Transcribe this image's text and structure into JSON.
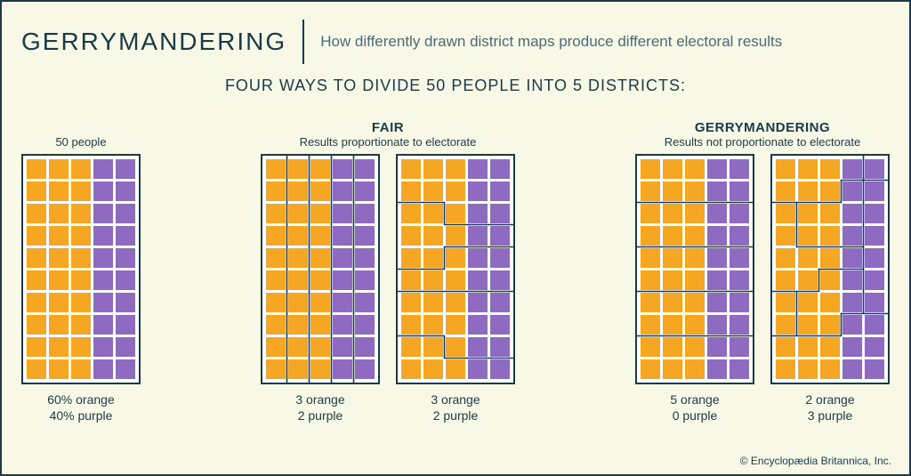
{
  "header": {
    "title": "GERRYMANDERING",
    "subtitle": "How differently drawn district maps produce different electoral results"
  },
  "section_title": "FOUR WAYS TO DIVIDE 50 PEOPLE INTO 5 DISTRICTS:",
  "colors": {
    "orange": "#f5a623",
    "purple": "#8e6ac1",
    "border": "#1a3a4a",
    "bg": "#f7f8e5",
    "panel_bg": "#ffffff"
  },
  "grid": {
    "rows": 10,
    "cols": 5,
    "cell_size": 22,
    "gap": 3,
    "padding": 4,
    "cell_pattern_row": [
      "orange",
      "orange",
      "orange",
      "purple",
      "purple"
    ]
  },
  "panels": {
    "p1": {
      "top_label_1": "",
      "top_label_2": "50 people",
      "caption_1": "60% orange",
      "caption_2": "40% purple"
    },
    "fair": {
      "header_1": "FAIR",
      "header_2": "Results proportionate to electorate"
    },
    "p2": {
      "caption_1": "3 orange",
      "caption_2": "2 purple"
    },
    "p3": {
      "caption_1": "3 orange",
      "caption_2": "2 purple"
    },
    "gerry": {
      "header_1": "GERRYMANDERING",
      "header_2": "Results not proportionate to electorate"
    },
    "p4": {
      "caption_1": "5 orange",
      "caption_2": "0 purple"
    },
    "p5": {
      "caption_1": "2 orange",
      "caption_2": "3 purple"
    }
  },
  "attribution": "© Encyclopædia Britannica, Inc."
}
